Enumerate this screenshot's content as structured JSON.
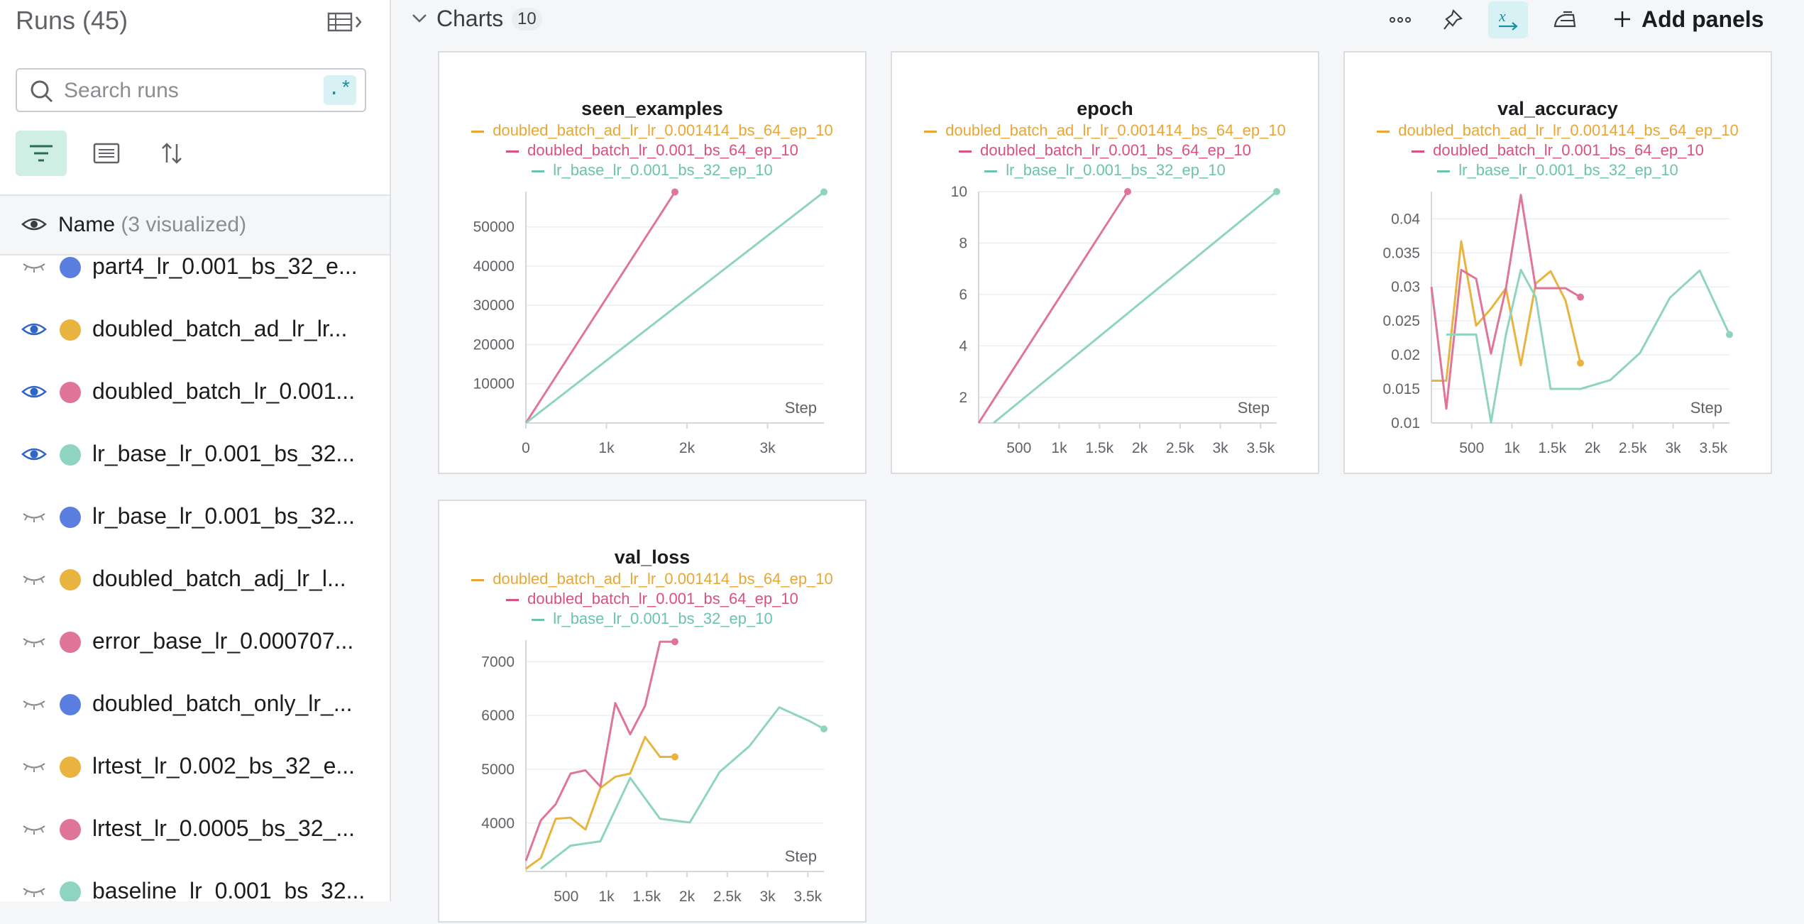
{
  "sidebar": {
    "title": "Runs (45)",
    "search_placeholder": "Search runs",
    "regex_label": ".*",
    "name_header": "Name",
    "name_header_note": "(3 visualized)",
    "runs": [
      {
        "name": "part4_lr_0.001_bs_32_e...",
        "color": "#5b7fe0",
        "visible": false
      },
      {
        "name": "doubled_batch_ad_lr_lr...",
        "color": "#e8b33e",
        "visible": true
      },
      {
        "name": "doubled_batch_lr_0.001...",
        "color": "#df7598",
        "visible": true
      },
      {
        "name": "lr_base_lr_0.001_bs_32...",
        "color": "#8fd4c0",
        "visible": true
      },
      {
        "name": "lr_base_lr_0.001_bs_32...",
        "color": "#5b7fe0",
        "visible": false
      },
      {
        "name": "doubled_batch_adj_lr_l...",
        "color": "#e8b33e",
        "visible": false
      },
      {
        "name": "error_base_lr_0.000707...",
        "color": "#df7598",
        "visible": false
      },
      {
        "name": "doubled_batch_only_lr_...",
        "color": "#5b7fe0",
        "visible": false
      },
      {
        "name": "lrtest_lr_0.002_bs_32_e...",
        "color": "#e8b33e",
        "visible": false
      },
      {
        "name": "lrtest_lr_0.0005_bs_32_...",
        "color": "#df7598",
        "visible": false
      },
      {
        "name": "baseline_lr_0.001_bs_32...",
        "color": "#8fd4c0",
        "visible": false
      }
    ]
  },
  "header": {
    "section_title": "Charts",
    "section_count": "10",
    "add_panels_label": "Add panels"
  },
  "legend_entries": [
    {
      "name": "doubled_batch_ad_lr_lr_0.001414_bs_64_ep_10",
      "color": "#e8a735"
    },
    {
      "name": "doubled_batch_lr_0.001_bs_64_ep_10",
      "color": "#d9527b"
    },
    {
      "name": "lr_base_lr_0.001_bs_32_ep_10",
      "color": "#6cc3ad"
    }
  ],
  "chart_data": [
    {
      "type": "line",
      "title": "seen_examples",
      "xlabel": "Step",
      "xlim": [
        0,
        3700
      ],
      "ylim": [
        0,
        59000
      ],
      "xticks": [
        0,
        1000,
        2000,
        3000
      ],
      "xtick_labels": [
        "0",
        "1k",
        "2k",
        "3k"
      ],
      "yticks": [
        10000,
        20000,
        30000,
        40000,
        50000
      ],
      "ytick_labels": [
        "10000",
        "20000",
        "30000",
        "40000",
        "50000"
      ],
      "series": [
        {
          "name": "doubled_batch_lr_0.001_bs_64_ep_10",
          "color": "#df7598",
          "x": [
            0,
            1850
          ],
          "y": [
            0,
            58900
          ]
        },
        {
          "name": "lr_base_lr_0.001_bs_32_ep_10",
          "color": "#8fd4c0",
          "x": [
            0,
            3700
          ],
          "y": [
            0,
            58900
          ]
        }
      ]
    },
    {
      "type": "line",
      "title": "epoch",
      "xlabel": "Step",
      "xlim": [
        0,
        3700
      ],
      "ylim": [
        1,
        10
      ],
      "xticks": [
        500,
        1000,
        1500,
        2000,
        2500,
        3000,
        3500
      ],
      "xtick_labels": [
        "500",
        "1k",
        "1.5k",
        "2k",
        "2.5k",
        "3k",
        "3.5k"
      ],
      "yticks": [
        2,
        4,
        6,
        8,
        10
      ],
      "ytick_labels": [
        "2",
        "4",
        "6",
        "8",
        "10"
      ],
      "series": [
        {
          "name": "doubled_batch_lr_0.001_bs_64_ep_10",
          "color": "#df7598",
          "x": [
            0,
            1850
          ],
          "y": [
            1,
            10
          ]
        },
        {
          "name": "lr_base_lr_0.001_bs_32_ep_10",
          "color": "#8fd4c0",
          "x": [
            185,
            3700
          ],
          "y": [
            1,
            10
          ]
        }
      ]
    },
    {
      "type": "line",
      "title": "val_accuracy",
      "xlabel": "Step",
      "xlim": [
        0,
        3700
      ],
      "ylim": [
        0.01,
        0.044
      ],
      "xticks": [
        500,
        1000,
        1500,
        2000,
        2500,
        3000,
        3500
      ],
      "xtick_labels": [
        "500",
        "1k",
        "1.5k",
        "2k",
        "2.5k",
        "3k",
        "3.5k"
      ],
      "yticks": [
        0.01,
        0.015,
        0.02,
        0.025,
        0.03,
        0.035,
        0.04
      ],
      "ytick_labels": [
        "0.01",
        "0.015",
        "0.02",
        "0.025",
        "0.03",
        "0.035",
        "0.04"
      ],
      "series": [
        {
          "name": "doubled_batch_ad_lr_lr_0.001414_bs_64_ep_10",
          "color": "#e8b33e",
          "x": [
            0,
            185,
            370,
            555,
            740,
            925,
            1110,
            1295,
            1480,
            1665,
            1850
          ],
          "y": [
            0.0162,
            0.0162,
            0.0367,
            0.0243,
            0.0268,
            0.0298,
            0.0185,
            0.0305,
            0.0323,
            0.028,
            0.0188
          ]
        },
        {
          "name": "doubled_batch_lr_0.001_bs_64_ep_10",
          "color": "#df7598",
          "x": [
            0,
            185,
            370,
            555,
            740,
            925,
            1110,
            1295,
            1480,
            1665,
            1850
          ],
          "y": [
            0.03,
            0.0121,
            0.0325,
            0.0312,
            0.0202,
            0.0298,
            0.0435,
            0.0298,
            0.0298,
            0.0298,
            0.0285
          ]
        },
        {
          "name": "lr_base_lr_0.001_bs_32_ep_10",
          "color": "#8fd4c0",
          "x": [
            185,
            370,
            555,
            740,
            925,
            1110,
            1295,
            1480,
            1665,
            1850,
            2220,
            2590,
            2960,
            3330,
            3700
          ],
          "y": [
            0.023,
            0.023,
            0.023,
            0.0101,
            0.023,
            0.0325,
            0.0285,
            0.015,
            0.015,
            0.015,
            0.0163,
            0.0203,
            0.0284,
            0.0324,
            0.023
          ]
        }
      ]
    },
    {
      "type": "line",
      "title": "val_loss",
      "xlabel": "Step",
      "xlim": [
        0,
        3700
      ],
      "ylim": [
        3100,
        7400
      ],
      "xticks": [
        500,
        1000,
        1500,
        2000,
        2500,
        3000,
        3500
      ],
      "xtick_labels": [
        "500",
        "1k",
        "1.5k",
        "2k",
        "2.5k",
        "3k",
        "3.5k"
      ],
      "yticks": [
        4000,
        5000,
        6000,
        7000
      ],
      "ytick_labels": [
        "4000",
        "5000",
        "6000",
        "7000"
      ],
      "series": [
        {
          "name": "doubled_batch_ad_lr_lr_0.001414_bs_64_ep_10",
          "color": "#e8b33e",
          "x": [
            0,
            185,
            370,
            555,
            740,
            925,
            1110,
            1295,
            1480,
            1665,
            1850
          ],
          "y": [
            3150,
            3350,
            4080,
            4100,
            3880,
            4650,
            4860,
            4920,
            5600,
            5230,
            5230
          ]
        },
        {
          "name": "doubled_batch_lr_0.001_bs_64_ep_10",
          "color": "#df7598",
          "x": [
            0,
            185,
            370,
            555,
            740,
            925,
            1110,
            1295,
            1480,
            1665,
            1850
          ],
          "y": [
            3300,
            4050,
            4350,
            4920,
            4980,
            4680,
            6230,
            5650,
            6180,
            7370,
            7370
          ]
        },
        {
          "name": "lr_base_lr_0.001_bs_32_ep_10",
          "color": "#8fd4c0",
          "x": [
            185,
            555,
            925,
            1295,
            1665,
            2035,
            2405,
            2775,
            3145,
            3515,
            3700
          ],
          "y": [
            3150,
            3580,
            3660,
            4840,
            4080,
            4010,
            4950,
            5430,
            6150,
            5900,
            5750
          ]
        }
      ]
    }
  ]
}
